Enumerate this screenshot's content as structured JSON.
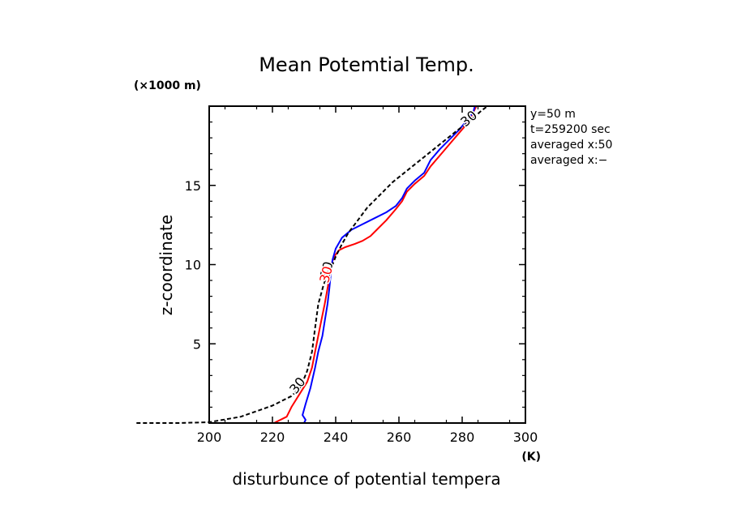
{
  "chart_data": {
    "type": "line",
    "title": "Mean Potemtial Temp.",
    "xlabel": "disturbunce of potential tempera",
    "ylabel": "z-coordinate",
    "x_unit": "(K)",
    "y_unit": "(×1000 m)",
    "xlim": [
      200,
      300
    ],
    "ylim": [
      0,
      20
    ],
    "x_ticks": [
      200,
      220,
      240,
      260,
      280,
      300
    ],
    "y_ticks": [
      5,
      10,
      15
    ],
    "grid": false,
    "info_lines": [
      "y=50 m",
      "t=259200 sec",
      "averaged  x:50",
      "averaged  x:−"
    ],
    "contour_label": "30",
    "series": [
      {
        "color": "#ff0000",
        "style": "solid",
        "points": [
          [
            220.5,
            0
          ],
          [
            224.5,
            0.4
          ],
          [
            226,
            1
          ],
          [
            228.5,
            1.8
          ],
          [
            231,
            2.6
          ],
          [
            232.5,
            3.5
          ],
          [
            233.5,
            4.5
          ],
          [
            234.5,
            5.5
          ],
          [
            235.5,
            6.5
          ],
          [
            236.5,
            7.5
          ],
          [
            237.5,
            8.6
          ],
          [
            238.2,
            9.5
          ],
          [
            238.6,
            10
          ],
          [
            239.5,
            10.5
          ],
          [
            241,
            10.9
          ],
          [
            243,
            11.1
          ],
          [
            246,
            11.3
          ],
          [
            248.5,
            11.5
          ],
          [
            251,
            11.8
          ],
          [
            253,
            12.2
          ],
          [
            256,
            12.8
          ],
          [
            259,
            13.5
          ],
          [
            261,
            14
          ],
          [
            262.5,
            14.6
          ],
          [
            265,
            15.1
          ],
          [
            268,
            15.6
          ],
          [
            270,
            16.2
          ],
          [
            273,
            16.9
          ],
          [
            276,
            17.6
          ],
          [
            279,
            18.3
          ],
          [
            282,
            19
          ],
          [
            283.5,
            19.6
          ],
          [
            284.5,
            20
          ]
        ]
      },
      {
        "color": "#0000ff",
        "style": "solid",
        "points": [
          [
            230,
            0
          ],
          [
            230.5,
            0.2
          ],
          [
            229.5,
            0.5
          ],
          [
            230.5,
            1.2
          ],
          [
            232,
            2.2
          ],
          [
            233.5,
            3.5
          ],
          [
            234.5,
            4.5
          ],
          [
            235.8,
            5.5
          ],
          [
            236.6,
            6.5
          ],
          [
            237.4,
            7.5
          ],
          [
            238,
            8.5
          ],
          [
            238.5,
            9.5
          ],
          [
            239,
            10.3
          ],
          [
            240,
            11
          ],
          [
            242,
            11.7
          ],
          [
            245,
            12.2
          ],
          [
            248,
            12.5
          ],
          [
            252,
            12.9
          ],
          [
            256,
            13.3
          ],
          [
            259,
            13.7
          ],
          [
            261,
            14.2
          ],
          [
            262.5,
            14.8
          ],
          [
            265,
            15.3
          ],
          [
            268,
            15.8
          ],
          [
            270,
            16.6
          ],
          [
            273,
            17.3
          ],
          [
            276,
            17.9
          ],
          [
            279,
            18.5
          ],
          [
            281.5,
            19.1
          ],
          [
            283.5,
            19.6
          ],
          [
            284,
            20
          ]
        ]
      },
      {
        "color": "#000000",
        "style": "dashed",
        "points": [
          [
            177,
            0
          ],
          [
            190,
            0
          ],
          [
            200,
            0.05
          ],
          [
            210,
            0.4
          ],
          [
            220,
            1.1
          ],
          [
            226,
            1.7
          ],
          [
            229,
            2.3
          ],
          [
            231,
            3.3
          ],
          [
            232.5,
            4.5
          ],
          [
            233.5,
            6
          ],
          [
            234.5,
            7.5
          ],
          [
            236,
            8.6
          ],
          [
            237.5,
            9.5
          ],
          [
            239,
            10
          ],
          [
            240,
            10.5
          ],
          [
            242,
            11.3
          ],
          [
            244,
            12
          ],
          [
            247,
            12.8
          ],
          [
            250,
            13.6
          ],
          [
            254,
            14.4
          ],
          [
            258,
            15.2
          ],
          [
            263,
            16
          ],
          [
            268,
            16.8
          ],
          [
            273,
            17.6
          ],
          [
            278,
            18.4
          ],
          [
            282,
            19
          ],
          [
            286,
            19.7
          ],
          [
            288,
            20
          ]
        ]
      }
    ]
  }
}
